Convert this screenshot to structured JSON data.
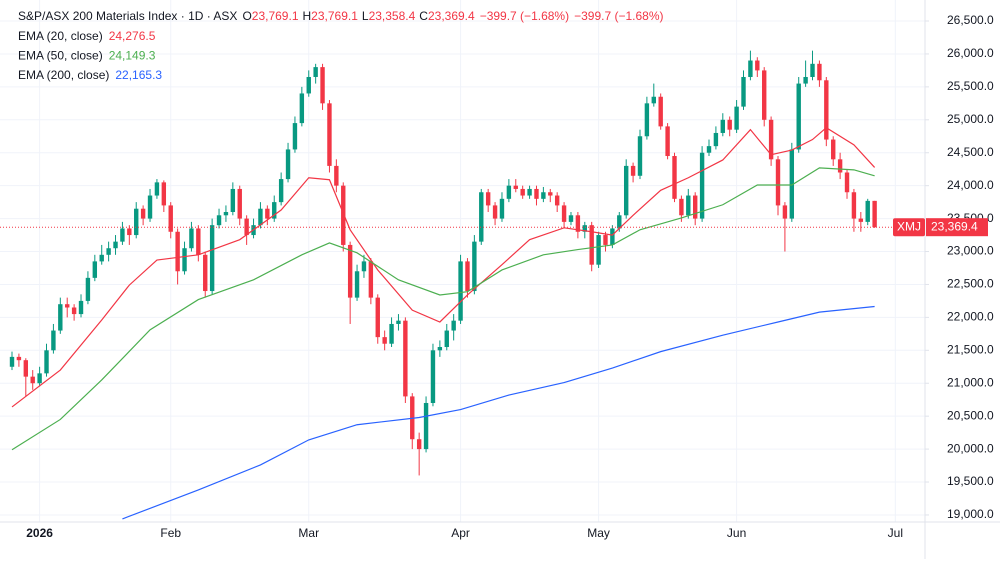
{
  "chart_data": {
    "type": "candlestick",
    "header": {
      "symbol": "S&P/ASX 200 Materials Index · 1D · ASX",
      "fields": [
        {
          "key": "O",
          "value": 23769.1,
          "label": "23,769.1"
        },
        {
          "key": "H",
          "value": 23769.1,
          "label": "23,769.1"
        },
        {
          "key": "L",
          "value": 23358.4,
          "label": "23,358.4"
        },
        {
          "key": "C",
          "value": 23369.4,
          "label": "23,369.4"
        }
      ],
      "change": {
        "value": -399.7,
        "label": "−399.7 (−1.68%)"
      }
    },
    "ticker": "XMJ",
    "last_price": {
      "value": 23369.4,
      "label": "23,369.4"
    },
    "up_color": "#089981",
    "down_color": "#f23645",
    "grid": true,
    "ylim": [
      18893,
      26819
    ],
    "yticks": [
      {
        "value": 19000,
        "label": "19,000.0"
      },
      {
        "value": 19500,
        "label": "19,500.0"
      },
      {
        "value": 20000,
        "label": "20,000.0"
      },
      {
        "value": 20500,
        "label": "20,500.0"
      },
      {
        "value": 21000,
        "label": "21,000.0"
      },
      {
        "value": 21500,
        "label": "21,500.0"
      },
      {
        "value": 22000,
        "label": "22,000.0"
      },
      {
        "value": 22500,
        "label": "22,500.0"
      },
      {
        "value": 23000,
        "label": "23,000.0"
      },
      {
        "value": 23500,
        "label": "23,500.0"
      },
      {
        "value": 24000,
        "label": "24,000.0"
      },
      {
        "value": 24500,
        "label": "24,500.0"
      },
      {
        "value": 25000,
        "label": "25,000.0"
      },
      {
        "value": 25500,
        "label": "25,500.0"
      },
      {
        "value": 26000,
        "label": "26,000.0"
      },
      {
        "value": 26500,
        "label": "26,500.0"
      }
    ],
    "xlim": [
      -1.74,
      132.3
    ],
    "xticks": [
      {
        "value": 4,
        "label": "2026"
      },
      {
        "value": 23,
        "label": "Feb"
      },
      {
        "value": 43,
        "label": "Mar"
      },
      {
        "value": 65,
        "label": "Apr"
      },
      {
        "value": 85,
        "label": "May"
      },
      {
        "value": 105,
        "label": "Jun"
      },
      {
        "value": 128,
        "label": "Jul"
      }
    ],
    "open": [
      21250,
      21400,
      21350,
      21100,
      21000,
      21150,
      21500,
      21800,
      22200,
      22150,
      22050,
      22250,
      22600,
      22850,
      22950,
      23050,
      23150,
      23350,
      23250,
      23650,
      23500,
      23850,
      24050,
      23700,
      23300,
      22700,
      23050,
      23350,
      22950,
      22400,
      23400,
      23550,
      23600,
      23950,
      23500,
      23250,
      23400,
      23650,
      23500,
      23750,
      24100,
      24550,
      24950,
      25400,
      25650,
      25800,
      25250,
      24300,
      24000,
      23100,
      22300,
      22700,
      22850,
      22300,
      21700,
      21600,
      21900,
      21950,
      20800,
      20150,
      20000,
      20700,
      21500,
      21550,
      21800,
      21950,
      22850,
      22400,
      23150,
      23900,
      23700,
      23500,
      23800,
      24000,
      23950,
      23850,
      23950,
      23800,
      23900,
      23850,
      23700,
      23450,
      23550,
      23300,
      23400,
      22800,
      23250,
      23100,
      23350,
      23550,
      24300,
      24150,
      24750,
      25250,
      25350,
      24900,
      24450,
      23800,
      23550,
      23850,
      23500,
      24500,
      24600,
      24800,
      25000,
      24850,
      25200,
      25650,
      25900,
      25750,
      25000,
      24400,
      23700,
      23500,
      24550,
      25550,
      25650,
      25850,
      25600,
      24700,
      24400,
      24200,
      23900,
      23500,
      23450,
      23769.1
    ],
    "high": [
      21480,
      21450,
      21380,
      21200,
      21250,
      21600,
      21900,
      22300,
      22300,
      22200,
      22350,
      22700,
      22950,
      23100,
      23150,
      23250,
      23450,
      23400,
      23750,
      23700,
      23950,
      24100,
      24080,
      23750,
      23350,
      23150,
      23450,
      23400,
      23000,
      23500,
      23650,
      23700,
      24050,
      24000,
      23550,
      23500,
      23750,
      23700,
      23850,
      24200,
      24650,
      25050,
      25500,
      25750,
      25850,
      25850,
      25300,
      24400,
      24050,
      23150,
      22800,
      22950,
      22900,
      22350,
      21800,
      22000,
      22050,
      22000,
      20850,
      20250,
      20800,
      21600,
      21650,
      21900,
      22050,
      22950,
      22900,
      23250,
      23950,
      23950,
      23750,
      23900,
      24100,
      24100,
      24000,
      24000,
      24000,
      23980,
      23950,
      23900,
      23750,
      23600,
      23600,
      23450,
      23450,
      23300,
      23300,
      23400,
      23600,
      24400,
      24350,
      24850,
      25350,
      25550,
      25400,
      24950,
      24500,
      23850,
      23950,
      23900,
      24600,
      24700,
      24900,
      25100,
      25050,
      25300,
      25750,
      26050,
      25950,
      25800,
      25050,
      24450,
      23750,
      24650,
      25650,
      25900,
      26050,
      25900,
      25650,
      24750,
      24500,
      24250,
      23950,
      23600,
      23800,
      23769.1
    ],
    "low": [
      21200,
      21250,
      20800,
      20900,
      20950,
      21100,
      21450,
      21750,
      22000,
      21950,
      22000,
      22200,
      22550,
      22800,
      22850,
      22950,
      23100,
      23100,
      23200,
      23400,
      23450,
      23800,
      23600,
      23200,
      22500,
      22650,
      23000,
      22850,
      22300,
      22350,
      23350,
      23450,
      23550,
      23400,
      23100,
      23200,
      23350,
      23400,
      23450,
      23700,
      24050,
      24500,
      24900,
      25350,
      25550,
      25150,
      24200,
      23900,
      23000,
      21900,
      22250,
      22600,
      22200,
      21600,
      21500,
      21550,
      21800,
      20700,
      20000,
      19600,
      19950,
      20650,
      21400,
      21500,
      21650,
      21900,
      22300,
      22350,
      23100,
      23600,
      23400,
      23450,
      23750,
      23900,
      23800,
      23800,
      23700,
      23750,
      23750,
      23600,
      23350,
      23400,
      23200,
      23200,
      22700,
      22750,
      23000,
      23050,
      23300,
      23500,
      24050,
      24100,
      24700,
      25200,
      24850,
      24400,
      23750,
      23450,
      23500,
      23400,
      23450,
      24450,
      24550,
      24750,
      24750,
      24800,
      25150,
      25600,
      25650,
      24900,
      24300,
      23550,
      23000,
      23450,
      24500,
      25500,
      25600,
      25500,
      24600,
      24300,
      24100,
      23800,
      23300,
      23300,
      23400,
      23358.4
    ],
    "close": [
      21400,
      21350,
      21100,
      21000,
      21150,
      21500,
      21800,
      22200,
      22150,
      22050,
      22250,
      22600,
      22850,
      22950,
      23050,
      23150,
      23350,
      23250,
      23650,
      23500,
      23850,
      24050,
      23700,
      23300,
      22700,
      23050,
      23350,
      22950,
      22400,
      23400,
      23550,
      23600,
      23950,
      23500,
      23250,
      23400,
      23650,
      23500,
      23750,
      24100,
      24550,
      24950,
      25400,
      25650,
      25800,
      25250,
      24300,
      24000,
      23100,
      22300,
      22700,
      22850,
      22300,
      21700,
      21600,
      21900,
      21950,
      20800,
      20150,
      20000,
      20700,
      21500,
      21550,
      21800,
      21950,
      22850,
      22400,
      23150,
      23900,
      23700,
      23500,
      23800,
      24000,
      23950,
      23850,
      23950,
      23800,
      23900,
      23850,
      23700,
      23450,
      23550,
      23300,
      23400,
      22800,
      23250,
      23100,
      23350,
      23550,
      24300,
      24150,
      24750,
      25250,
      25350,
      24900,
      24450,
      23800,
      23550,
      23850,
      23500,
      24500,
      24600,
      24800,
      25000,
      24850,
      25200,
      25650,
      25900,
      25750,
      25000,
      24400,
      23700,
      23500,
      24550,
      25550,
      25650,
      25850,
      25600,
      24700,
      24400,
      24200,
      23900,
      23500,
      23450,
      23769.1,
      23369.4
    ],
    "lines": [
      {
        "name": "EMA (20, close)",
        "color": "#f23645",
        "legend_value": {
          "value": 24276.5,
          "label": "24,276.5"
        },
        "x": [
          0,
          7,
          13,
          17,
          21,
          27,
          33,
          39,
          43,
          46,
          49,
          53,
          58,
          62,
          66,
          71,
          75,
          80,
          84,
          87,
          90,
          94,
          98,
          103,
          107,
          110,
          113,
          116,
          118,
          122,
          125
        ],
        "values": [
          20640,
          21200,
          21960,
          22490,
          22870,
          22950,
          23180,
          23630,
          24120,
          24090,
          23330,
          22720,
          22110,
          21930,
          22340,
          22800,
          23180,
          23360,
          23300,
          23250,
          23550,
          23930,
          24120,
          24390,
          24850,
          24470,
          24540,
          24700,
          24880,
          24620,
          24276.5
        ]
      },
      {
        "name": "EMA (50, close)",
        "color": "#4caf50",
        "legend_value": {
          "value": 24149.3,
          "label": "24,149.3"
        },
        "x": [
          0,
          7,
          13,
          20,
          27,
          35,
          42,
          46,
          50,
          56,
          62,
          66,
          71,
          77,
          82,
          87,
          91,
          97,
          103,
          108,
          113,
          117,
          122,
          125
        ],
        "values": [
          19990,
          20450,
          21050,
          21810,
          22270,
          22570,
          22950,
          23130,
          22980,
          22570,
          22340,
          22390,
          22720,
          22950,
          23030,
          23100,
          23330,
          23510,
          23710,
          24010,
          24010,
          24270,
          24240,
          24149.3
        ]
      },
      {
        "name": "EMA (200, close)",
        "color": "#2962ff",
        "legend_value": {
          "value": 22165.3,
          "label": "22,165.3"
        },
        "x": [
          16,
          27,
          36,
          43,
          50,
          59,
          65,
          72,
          80,
          87,
          94,
          103,
          111,
          117,
          125
        ],
        "values": [
          18940,
          19380,
          19760,
          20140,
          20370,
          20480,
          20600,
          20820,
          21010,
          21230,
          21480,
          21730,
          21930,
          22080,
          22165.3
        ]
      }
    ]
  }
}
